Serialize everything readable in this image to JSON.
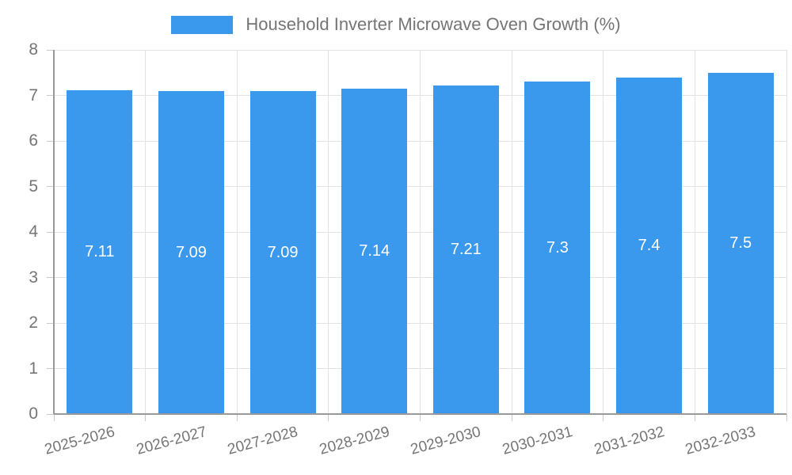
{
  "chart_data": {
    "type": "bar",
    "title": "",
    "legend_label": "Household Inverter Microwave Oven Growth (%)",
    "legend_position": "top-center",
    "categories": [
      "2025-2026",
      "2026-2027",
      "2027-2028",
      "2028-2029",
      "2029-2030",
      "2030-2031",
      "2031-2032",
      "2032-2033"
    ],
    "values": [
      7.11,
      7.09,
      7.09,
      7.14,
      7.21,
      7.3,
      7.4,
      7.5
    ],
    "bar_labels": [
      "7.11",
      "7.09",
      "7.09",
      "7.14",
      "7.21",
      "7.3",
      "7.4",
      "7.5"
    ],
    "xlabel": "",
    "ylabel": "",
    "ylim": [
      0,
      8
    ],
    "yticks": [
      0,
      1,
      2,
      3,
      4,
      5,
      6,
      7,
      8
    ],
    "grid": true
  },
  "colors": {
    "bar": "#3a99ec",
    "bar_label_text": "#ffffff",
    "axis_line": "#999999",
    "gridline": "#e3e3e3",
    "tick_mark": "#c9c9c9",
    "tick_label_text": "#757575",
    "legend_text": "#757575",
    "background": "#ffffff"
  }
}
